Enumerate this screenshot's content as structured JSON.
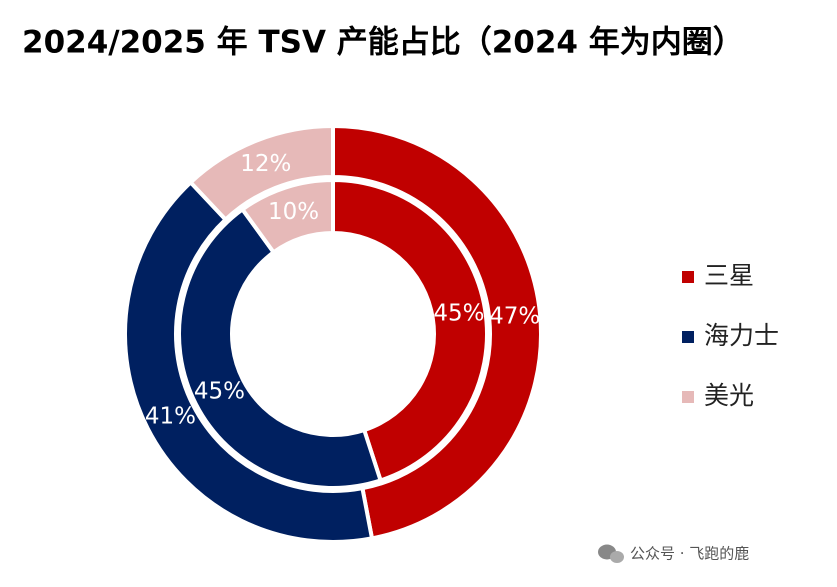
{
  "chart_data": {
    "type": "donut",
    "title": "2024/2025 年 TSV 产能占比（2024 年为内圈）",
    "categories": [
      "三星",
      "海力士",
      "美光"
    ],
    "colors": [
      "#c00000",
      "#002060",
      "#e6b9b8"
    ],
    "series": [
      {
        "values": [
          45,
          45,
          10
        ],
        "value_labels": [
          "45%",
          "45%",
          "10%"
        ]
      },
      {
        "values": [
          47,
          41,
          12
        ],
        "value_labels": [
          "47%",
          "41%",
          "12%"
        ]
      }
    ],
    "legend": "right",
    "watermark": "公众号 · 飞跑的鹿"
  }
}
